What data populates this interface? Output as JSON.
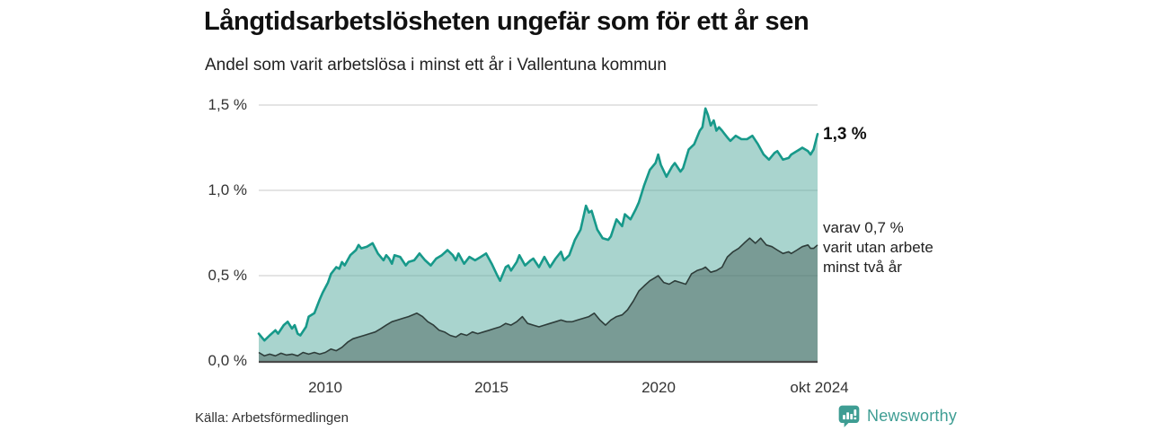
{
  "header": {
    "title": "Långtidsarbetslösheten ungefär som för ett år sen",
    "subtitle": "Andel som varit arbetslösa i minst ett år i Vallentuna kommun"
  },
  "footer": {
    "source": "Källa: Arbetsförmedlingen",
    "brand": "Newsworthy"
  },
  "colors": {
    "upper_line": "#17998a",
    "upper_fill": "rgba(84,170,157,0.5)",
    "lower_line": "#2e3d3a",
    "lower_fill": "rgba(45,62,58,0.38)",
    "gridline": "#dcdcdc",
    "axis_line": "#4a4a4a",
    "brand_teal": "#3e9d93"
  },
  "chart_data": {
    "type": "area",
    "title": "Långtidsarbetslösheten ungefär som för ett år sen",
    "subtitle": "Andel som varit arbetslösa i minst ett år i Vallentuna kommun",
    "unit": "%",
    "x_range": [
      2008.0,
      2024.79
    ],
    "ylim": [
      0,
      1.55
    ],
    "grid": "horizontal",
    "y_axis": {
      "ticks": [
        {
          "label": "0,0 %",
          "value": 0.0
        },
        {
          "label": "0,5 %",
          "value": 0.5
        },
        {
          "label": "1,0 %",
          "value": 1.0
        },
        {
          "label": "1,5 %",
          "value": 1.5
        }
      ]
    },
    "x_axis": {
      "ticks": [
        {
          "label": "2010",
          "year": 2010
        },
        {
          "label": "2015",
          "year": 2015
        },
        {
          "label": "2020",
          "year": 2020
        },
        {
          "label": "okt 2024",
          "year": 2024.79
        }
      ]
    },
    "series": [
      {
        "name": "Andel arbetslösa minst ett år",
        "end_label": "1,3 %",
        "end_value": 1.3,
        "points": [
          [
            2008.0,
            0.16
          ],
          [
            2008.17,
            0.12
          ],
          [
            2008.33,
            0.15
          ],
          [
            2008.5,
            0.18
          ],
          [
            2008.58,
            0.16
          ],
          [
            2008.75,
            0.21
          ],
          [
            2008.87,
            0.23
          ],
          [
            2009.0,
            0.19
          ],
          [
            2009.08,
            0.21
          ],
          [
            2009.17,
            0.16
          ],
          [
            2009.25,
            0.15
          ],
          [
            2009.42,
            0.2
          ],
          [
            2009.5,
            0.26
          ],
          [
            2009.67,
            0.28
          ],
          [
            2009.83,
            0.36
          ],
          [
            2009.92,
            0.4
          ],
          [
            2010.08,
            0.46
          ],
          [
            2010.17,
            0.51
          ],
          [
            2010.33,
            0.55
          ],
          [
            2010.42,
            0.54
          ],
          [
            2010.5,
            0.58
          ],
          [
            2010.58,
            0.56
          ],
          [
            2010.75,
            0.62
          ],
          [
            2010.92,
            0.65
          ],
          [
            2011.0,
            0.68
          ],
          [
            2011.08,
            0.66
          ],
          [
            2011.25,
            0.67
          ],
          [
            2011.42,
            0.69
          ],
          [
            2011.5,
            0.66
          ],
          [
            2011.58,
            0.63
          ],
          [
            2011.75,
            0.59
          ],
          [
            2011.83,
            0.62
          ],
          [
            2011.92,
            0.6
          ],
          [
            2012.0,
            0.57
          ],
          [
            2012.08,
            0.62
          ],
          [
            2012.25,
            0.61
          ],
          [
            2012.42,
            0.56
          ],
          [
            2012.5,
            0.58
          ],
          [
            2012.67,
            0.59
          ],
          [
            2012.83,
            0.63
          ],
          [
            2013.0,
            0.59
          ],
          [
            2013.17,
            0.56
          ],
          [
            2013.33,
            0.6
          ],
          [
            2013.5,
            0.62
          ],
          [
            2013.67,
            0.65
          ],
          [
            2013.83,
            0.62
          ],
          [
            2013.92,
            0.59
          ],
          [
            2014.0,
            0.63
          ],
          [
            2014.17,
            0.57
          ],
          [
            2014.33,
            0.61
          ],
          [
            2014.5,
            0.59
          ],
          [
            2014.67,
            0.61
          ],
          [
            2014.83,
            0.63
          ],
          [
            2015.0,
            0.57
          ],
          [
            2015.17,
            0.5
          ],
          [
            2015.25,
            0.47
          ],
          [
            2015.42,
            0.55
          ],
          [
            2015.5,
            0.56
          ],
          [
            2015.58,
            0.53
          ],
          [
            2015.75,
            0.58
          ],
          [
            2015.83,
            0.62
          ],
          [
            2016.0,
            0.56
          ],
          [
            2016.17,
            0.59
          ],
          [
            2016.25,
            0.6
          ],
          [
            2016.42,
            0.55
          ],
          [
            2016.58,
            0.61
          ],
          [
            2016.75,
            0.55
          ],
          [
            2016.92,
            0.6
          ],
          [
            2017.08,
            0.64
          ],
          [
            2017.17,
            0.59
          ],
          [
            2017.33,
            0.62
          ],
          [
            2017.5,
            0.71
          ],
          [
            2017.67,
            0.77
          ],
          [
            2017.83,
            0.91
          ],
          [
            2017.92,
            0.87
          ],
          [
            2018.0,
            0.88
          ],
          [
            2018.17,
            0.77
          ],
          [
            2018.33,
            0.72
          ],
          [
            2018.5,
            0.71
          ],
          [
            2018.58,
            0.73
          ],
          [
            2018.75,
            0.83
          ],
          [
            2018.92,
            0.79
          ],
          [
            2019.0,
            0.86
          ],
          [
            2019.17,
            0.83
          ],
          [
            2019.33,
            0.89
          ],
          [
            2019.42,
            0.93
          ],
          [
            2019.58,
            1.03
          ],
          [
            2019.75,
            1.12
          ],
          [
            2019.92,
            1.16
          ],
          [
            2020.0,
            1.21
          ],
          [
            2020.08,
            1.15
          ],
          [
            2020.25,
            1.08
          ],
          [
            2020.42,
            1.14
          ],
          [
            2020.5,
            1.16
          ],
          [
            2020.67,
            1.11
          ],
          [
            2020.75,
            1.13
          ],
          [
            2020.92,
            1.24
          ],
          [
            2021.08,
            1.27
          ],
          [
            2021.25,
            1.35
          ],
          [
            2021.33,
            1.37
          ],
          [
            2021.42,
            1.48
          ],
          [
            2021.5,
            1.44
          ],
          [
            2021.58,
            1.38
          ],
          [
            2021.67,
            1.41
          ],
          [
            2021.75,
            1.35
          ],
          [
            2021.83,
            1.37
          ],
          [
            2021.92,
            1.35
          ],
          [
            2022.0,
            1.33
          ],
          [
            2022.08,
            1.31
          ],
          [
            2022.17,
            1.29
          ],
          [
            2022.33,
            1.32
          ],
          [
            2022.5,
            1.3
          ],
          [
            2022.67,
            1.3
          ],
          [
            2022.83,
            1.32
          ],
          [
            2023.0,
            1.27
          ],
          [
            2023.17,
            1.21
          ],
          [
            2023.33,
            1.18
          ],
          [
            2023.5,
            1.22
          ],
          [
            2023.58,
            1.23
          ],
          [
            2023.75,
            1.18
          ],
          [
            2023.92,
            1.19
          ],
          [
            2024.0,
            1.21
          ],
          [
            2024.17,
            1.23
          ],
          [
            2024.33,
            1.25
          ],
          [
            2024.5,
            1.23
          ],
          [
            2024.58,
            1.21
          ],
          [
            2024.67,
            1.24
          ],
          [
            2024.79,
            1.33
          ]
        ]
      },
      {
        "name": "varav utan arbete minst två år",
        "end_value": 0.7,
        "annotation": [
          "varav 0,7 %",
          "varit utan arbete",
          "minst två år"
        ],
        "points": [
          [
            2008.0,
            0.05
          ],
          [
            2008.17,
            0.03
          ],
          [
            2008.33,
            0.04
          ],
          [
            2008.5,
            0.03
          ],
          [
            2008.67,
            0.045
          ],
          [
            2008.83,
            0.035
          ],
          [
            2009.0,
            0.04
          ],
          [
            2009.17,
            0.03
          ],
          [
            2009.33,
            0.05
          ],
          [
            2009.5,
            0.04
          ],
          [
            2009.67,
            0.05
          ],
          [
            2009.83,
            0.04
          ],
          [
            2010.0,
            0.05
          ],
          [
            2010.17,
            0.07
          ],
          [
            2010.33,
            0.06
          ],
          [
            2010.5,
            0.08
          ],
          [
            2010.67,
            0.11
          ],
          [
            2010.83,
            0.13
          ],
          [
            2011.0,
            0.14
          ],
          [
            2011.17,
            0.15
          ],
          [
            2011.33,
            0.16
          ],
          [
            2011.5,
            0.17
          ],
          [
            2011.67,
            0.19
          ],
          [
            2011.83,
            0.21
          ],
          [
            2012.0,
            0.23
          ],
          [
            2012.17,
            0.24
          ],
          [
            2012.33,
            0.25
          ],
          [
            2012.5,
            0.26
          ],
          [
            2012.75,
            0.28
          ],
          [
            2012.92,
            0.26
          ],
          [
            2013.08,
            0.23
          ],
          [
            2013.25,
            0.21
          ],
          [
            2013.42,
            0.18
          ],
          [
            2013.58,
            0.17
          ],
          [
            2013.75,
            0.15
          ],
          [
            2013.92,
            0.14
          ],
          [
            2014.08,
            0.16
          ],
          [
            2014.25,
            0.15
          ],
          [
            2014.42,
            0.17
          ],
          [
            2014.58,
            0.16
          ],
          [
            2014.75,
            0.17
          ],
          [
            2014.92,
            0.18
          ],
          [
            2015.08,
            0.19
          ],
          [
            2015.25,
            0.2
          ],
          [
            2015.42,
            0.22
          ],
          [
            2015.58,
            0.21
          ],
          [
            2015.75,
            0.23
          ],
          [
            2015.92,
            0.26
          ],
          [
            2016.08,
            0.22
          ],
          [
            2016.25,
            0.21
          ],
          [
            2016.42,
            0.2
          ],
          [
            2016.58,
            0.21
          ],
          [
            2016.75,
            0.22
          ],
          [
            2016.92,
            0.23
          ],
          [
            2017.08,
            0.24
          ],
          [
            2017.25,
            0.23
          ],
          [
            2017.42,
            0.23
          ],
          [
            2017.58,
            0.24
          ],
          [
            2017.75,
            0.25
          ],
          [
            2017.92,
            0.26
          ],
          [
            2018.08,
            0.28
          ],
          [
            2018.25,
            0.24
          ],
          [
            2018.42,
            0.21
          ],
          [
            2018.58,
            0.24
          ],
          [
            2018.75,
            0.26
          ],
          [
            2018.92,
            0.27
          ],
          [
            2019.08,
            0.3
          ],
          [
            2019.25,
            0.35
          ],
          [
            2019.42,
            0.41
          ],
          [
            2019.58,
            0.44
          ],
          [
            2019.75,
            0.47
          ],
          [
            2019.92,
            0.49
          ],
          [
            2020.0,
            0.5
          ],
          [
            2020.17,
            0.46
          ],
          [
            2020.33,
            0.45
          ],
          [
            2020.5,
            0.47
          ],
          [
            2020.67,
            0.46
          ],
          [
            2020.83,
            0.45
          ],
          [
            2021.0,
            0.51
          ],
          [
            2021.17,
            0.53
          ],
          [
            2021.33,
            0.54
          ],
          [
            2021.42,
            0.55
          ],
          [
            2021.58,
            0.52
          ],
          [
            2021.75,
            0.53
          ],
          [
            2021.92,
            0.55
          ],
          [
            2022.0,
            0.58
          ],
          [
            2022.08,
            0.61
          ],
          [
            2022.25,
            0.64
          ],
          [
            2022.42,
            0.66
          ],
          [
            2022.58,
            0.69
          ],
          [
            2022.75,
            0.72
          ],
          [
            2022.92,
            0.69
          ],
          [
            2023.08,
            0.72
          ],
          [
            2023.25,
            0.68
          ],
          [
            2023.42,
            0.67
          ],
          [
            2023.58,
            0.65
          ],
          [
            2023.75,
            0.63
          ],
          [
            2023.92,
            0.64
          ],
          [
            2024.0,
            0.63
          ],
          [
            2024.17,
            0.65
          ],
          [
            2024.33,
            0.67
          ],
          [
            2024.5,
            0.68
          ],
          [
            2024.58,
            0.66
          ],
          [
            2024.67,
            0.66
          ],
          [
            2024.79,
            0.68
          ]
        ]
      }
    ]
  }
}
